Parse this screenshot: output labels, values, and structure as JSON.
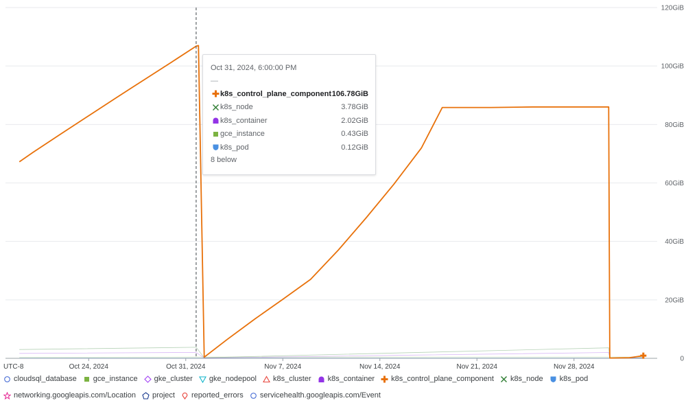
{
  "chart_data": {
    "type": "line",
    "timezone_label": "UTC-8",
    "y_unit": "GiB",
    "ylim": [
      0,
      120
    ],
    "y_ticks": [
      {
        "value": 0,
        "label": "0"
      },
      {
        "value": 20,
        "label": "20GiB"
      },
      {
        "value": 40,
        "label": "40GiB"
      },
      {
        "value": 60,
        "label": "60GiB"
      },
      {
        "value": 80,
        "label": "80GiB"
      },
      {
        "value": 100,
        "label": "100GiB"
      },
      {
        "value": 120,
        "label": "120GiB"
      }
    ],
    "x_range": [
      "2024-10-18",
      "2024-12-04"
    ],
    "x_ticks": [
      {
        "date": "2024-10-24",
        "label": "Oct 24, 2024"
      },
      {
        "date": "2024-10-31",
        "label": "Oct 31, 2024"
      },
      {
        "date": "2024-11-07",
        "label": "Nov 7, 2024"
      },
      {
        "date": "2024-11-14",
        "label": "Nov 14, 2024"
      },
      {
        "date": "2024-11-21",
        "label": "Nov 21, 2024"
      },
      {
        "date": "2024-11-28",
        "label": "Nov 28, 2024"
      }
    ],
    "grid": true,
    "legend_position": "bottom",
    "hover_x": "2024-10-31T18:00",
    "series": [
      {
        "name": "k8s_control_plane_component",
        "color": "#e8710a",
        "points": [
          [
            "2024-10-19T00:00",
            67.2
          ],
          [
            "2024-10-20T00:00",
            70.5
          ],
          [
            "2024-10-22T00:00",
            76.8
          ],
          [
            "2024-10-24T00:00",
            83.0
          ],
          [
            "2024-10-26T00:00",
            89.2
          ],
          [
            "2024-10-28T00:00",
            95.3
          ],
          [
            "2024-10-30T00:00",
            101.4
          ],
          [
            "2024-10-31T18:00",
            106.78
          ],
          [
            "2024-10-31T22:00",
            107.0
          ],
          [
            "2024-11-01T08:00",
            0.4
          ],
          [
            "2024-11-03T00:00",
            6.5
          ],
          [
            "2024-11-05T00:00",
            13.5
          ],
          [
            "2024-11-07T00:00",
            20.2
          ],
          [
            "2024-11-09T00:00",
            27.0
          ],
          [
            "2024-11-11T00:00",
            37.0
          ],
          [
            "2024-11-13T00:00",
            48.0
          ],
          [
            "2024-11-15T00:00",
            59.5
          ],
          [
            "2024-11-17T00:00",
            72.0
          ],
          [
            "2024-11-18T12:00",
            85.8
          ],
          [
            "2024-11-22T00:00",
            85.8
          ],
          [
            "2024-11-25T00:00",
            86.0
          ],
          [
            "2024-11-29T00:00",
            86.0
          ],
          [
            "2024-11-30T12:00",
            86.0
          ],
          [
            "2024-11-30T14:00",
            0.1
          ],
          [
            "2024-12-02T00:00",
            0.2
          ],
          [
            "2024-12-03T00:00",
            0.9
          ]
        ]
      },
      {
        "name": "k8s_node",
        "color": "#2e7d32",
        "points": [
          [
            "2024-10-19T00:00",
            3.0
          ],
          [
            "2024-10-31T18:00",
            3.78
          ],
          [
            "2024-11-01T08:00",
            0.2
          ],
          [
            "2024-11-15T00:00",
            1.8
          ],
          [
            "2024-11-30T12:00",
            3.6
          ],
          [
            "2024-11-30T14:00",
            0.05
          ],
          [
            "2024-12-03T00:00",
            0.2
          ]
        ]
      },
      {
        "name": "k8s_container",
        "color": "#9334e6",
        "points": [
          [
            "2024-10-19T00:00",
            1.7
          ],
          [
            "2024-10-31T18:00",
            2.02
          ],
          [
            "2024-11-01T08:00",
            0.1
          ],
          [
            "2024-11-15T00:00",
            1.0
          ],
          [
            "2024-11-30T12:00",
            2.0
          ],
          [
            "2024-11-30T14:00",
            0.05
          ],
          [
            "2024-12-03T00:00",
            0.1
          ]
        ]
      },
      {
        "name": "gce_instance",
        "color": "#7cb342",
        "points": [
          [
            "2024-10-19T00:00",
            0.35
          ],
          [
            "2024-10-31T18:00",
            0.43
          ],
          [
            "2024-11-30T12:00",
            0.45
          ],
          [
            "2024-12-03T00:00",
            0.45
          ]
        ]
      },
      {
        "name": "k8s_pod",
        "color": "#4a90e2",
        "points": [
          [
            "2024-10-19T00:00",
            0.1
          ],
          [
            "2024-10-31T18:00",
            0.12
          ],
          [
            "2024-11-30T12:00",
            0.12
          ],
          [
            "2024-12-03T00:00",
            0.12
          ]
        ]
      }
    ]
  },
  "tooltip": {
    "time": "Oct 31, 2024, 6:00:00 PM",
    "dash": "—",
    "rows": [
      {
        "name": "k8s_control_plane_component",
        "value": "106.78GiB",
        "icon": "plus-icon",
        "color": "#e8710a",
        "highlight": true
      },
      {
        "name": "k8s_node",
        "value": "3.78GiB",
        "icon": "x-icon",
        "color": "#2e7d32"
      },
      {
        "name": "k8s_container",
        "value": "2.02GiB",
        "icon": "arch-icon",
        "color": "#9334e6"
      },
      {
        "name": "gce_instance",
        "value": "0.43GiB",
        "icon": "square-icon",
        "color": "#7cb342"
      },
      {
        "name": "k8s_pod",
        "value": "0.12GiB",
        "icon": "shield-icon",
        "color": "#4a90e2"
      }
    ],
    "more": "8 below"
  },
  "legend": [
    {
      "label": "cloudsql_database",
      "icon": "circle-icon",
      "color": "#4a6fd6"
    },
    {
      "label": "gce_instance",
      "icon": "square-icon",
      "color": "#7cb342"
    },
    {
      "label": "gke_cluster",
      "icon": "diamond-icon",
      "color": "#a142f4"
    },
    {
      "label": "gke_nodepool",
      "icon": "triangle-down-icon",
      "color": "#12b5cb"
    },
    {
      "label": "k8s_cluster",
      "icon": "triangle-up-icon",
      "color": "#e8453c"
    },
    {
      "label": "k8s_container",
      "icon": "arch-icon",
      "color": "#9334e6"
    },
    {
      "label": "k8s_control_plane_component",
      "icon": "plus-icon",
      "color": "#e8710a"
    },
    {
      "label": "k8s_node",
      "icon": "x-icon",
      "color": "#2e7d32"
    },
    {
      "label": "k8s_pod",
      "icon": "shield-icon",
      "color": "#4a90e2"
    },
    {
      "label": "networking.googleapis.com/Location",
      "icon": "star-icon",
      "color": "#e52592"
    },
    {
      "label": "project",
      "icon": "pentagon-icon",
      "color": "#1a3a8f"
    },
    {
      "label": "reported_errors",
      "icon": "pin-icon",
      "color": "#e8453c"
    },
    {
      "label": "servicehealth.googleapis.com/Event",
      "icon": "circle-icon",
      "color": "#4a6fd6"
    }
  ]
}
